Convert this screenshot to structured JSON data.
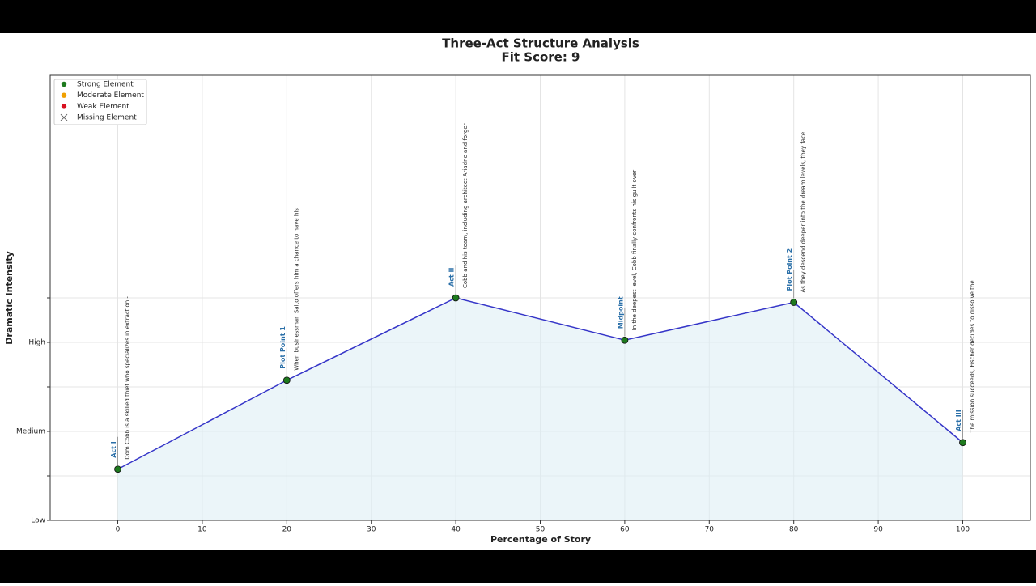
{
  "chart_data": {
    "type": "line",
    "title": "Three-Act Structure Analysis",
    "subtitle": "Fit Score: 9",
    "x_label": "Percentage of Story",
    "y_label": "Dramatic Intensity",
    "x": [
      0,
      20,
      40,
      60,
      80,
      100
    ],
    "values": [
      1.15,
      3.15,
      5.0,
      4.05,
      4.9,
      1.75
    ],
    "point_labels": [
      "Act I",
      "Plot Point 1",
      "Act II",
      "Midpoint",
      "Plot Point 2",
      "Act III"
    ],
    "descriptions": [
      "Dom Cobb is a skilled thief who specializes in extraction -",
      "When businessman Saito offers him a chance to have his",
      "Cobb and his team, including architect Ariadne and forger",
      "In the deepest level, Cobb finally confronts his guilt over",
      "As they descend deeper into the dream levels, they face",
      "The mission succeeds, Fischer decides to dissolve the"
    ],
    "point_colors": [
      "#1e7a1e",
      "#1e7a1e",
      "#1e7a1e",
      "#1e7a1e",
      "#1e7a1e",
      "#1e7a1e"
    ],
    "line_color": "#3535c8",
    "fill_color": "#ddeff5",
    "label_color": "#2a6fa8",
    "xlim": [
      -8,
      108
    ],
    "ylim": [
      0,
      10
    ],
    "xticks": [
      0,
      10,
      20,
      30,
      40,
      50,
      60,
      70,
      80,
      90,
      100
    ],
    "yticks": [
      {
        "value": 0,
        "label": "Low"
      },
      {
        "value": 2,
        "label": "Medium"
      },
      {
        "value": 4,
        "label": "High"
      }
    ],
    "yminor": [
      1,
      3,
      5
    ],
    "grid": true,
    "legend_position": "upper left",
    "legend": [
      {
        "name": "Strong Element",
        "color": "#1e7a1e",
        "marker": "circle"
      },
      {
        "name": "Moderate Element",
        "color": "#f0a000",
        "marker": "circle"
      },
      {
        "name": "Weak Element",
        "color": "#d81020",
        "marker": "circle"
      },
      {
        "name": "Missing Element",
        "color": "#666666",
        "marker": "x"
      }
    ]
  }
}
